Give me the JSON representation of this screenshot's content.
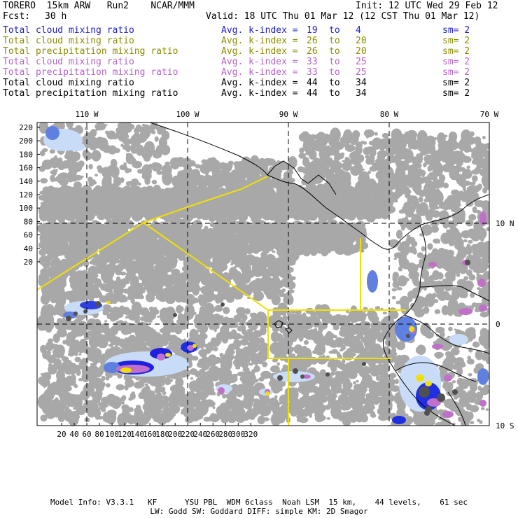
{
  "header": {
    "model": "TORERO  15km ARW   Run2    NCAR/MMM",
    "init": "Init: 12 UTC Wed 29 Feb 12",
    "fcst_label": "Fcst:",
    "fcst_value": "30 h",
    "valid": "Valid: 18 UTC Thu 01 Mar 12 (12 CST Thu 01 Mar 12)"
  },
  "legend": [
    {
      "field": "Total cloud mixing ratio",
      "kindex": "Avg. k-index =",
      "from": "19",
      "to_word": "to",
      "to": "4",
      "sm": "sm= 2",
      "color": "#2020c8"
    },
    {
      "field": "Total cloud mixing ratio",
      "kindex": "Avg. k-index =",
      "from": "26",
      "to_word": "to",
      "to": "20",
      "sm": "sm= 2",
      "color": "#8c8c00"
    },
    {
      "field": "Total precipitation mixing ratio",
      "kindex": "Avg. k-index =",
      "from": "26",
      "to_word": "to",
      "to": "20",
      "sm": "sm= 2",
      "color": "#8c8c00"
    },
    {
      "field": "Total cloud mixing ratio",
      "kindex": "Avg. k-index =",
      "from": "33",
      "to_word": "to",
      "to": "25",
      "sm": "sm= 2",
      "color": "#b464c8"
    },
    {
      "field": "Total precipitation mixing ratio",
      "kindex": "Avg. k-index =",
      "from": "33",
      "to_word": "to",
      "to": "25",
      "sm": "sm= 2",
      "color": "#b464c8"
    },
    {
      "field": "Total cloud mixing ratio",
      "kindex": "Avg. k-index =",
      "from": "44",
      "to_word": "to",
      "to": "34",
      "sm": "sm= 2",
      "color": "#000000"
    },
    {
      "field": "Total precipitation mixing ratio",
      "kindex": "Avg. k-index =",
      "from": "44",
      "to_word": "to",
      "to": "34",
      "sm": "sm= 2",
      "color": "#000000"
    }
  ],
  "map": {
    "top_lon_labels": [
      "110 W",
      "100 W",
      "90 W",
      "80 W",
      "70 W"
    ],
    "right_lat_labels": [
      "10 N",
      "0",
      "10 S"
    ],
    "left_grid_labels": [
      "220",
      "200",
      "180",
      "160",
      "140",
      "120",
      "100",
      "80",
      "60",
      "40",
      "20"
    ],
    "bottom_grid_labels": [
      "20",
      "40",
      "60",
      "80",
      "100",
      "120",
      "140",
      "160",
      "180",
      "200",
      "220",
      "240",
      "260",
      "280",
      "300",
      "320"
    ],
    "colors": {
      "cloud_gray": "#a8a8a8",
      "yellow_line": "#f0e000",
      "coast": "#000000"
    }
  },
  "footer": {
    "line1": "Model Info: V3.3.1   KF      YSU PBL  WDM 6class  Noah LSM  15 km,    44 levels,    61 sec",
    "line2": "LW: Godd SW: Goddard DIFF: simple KM: 2D Smagor"
  }
}
